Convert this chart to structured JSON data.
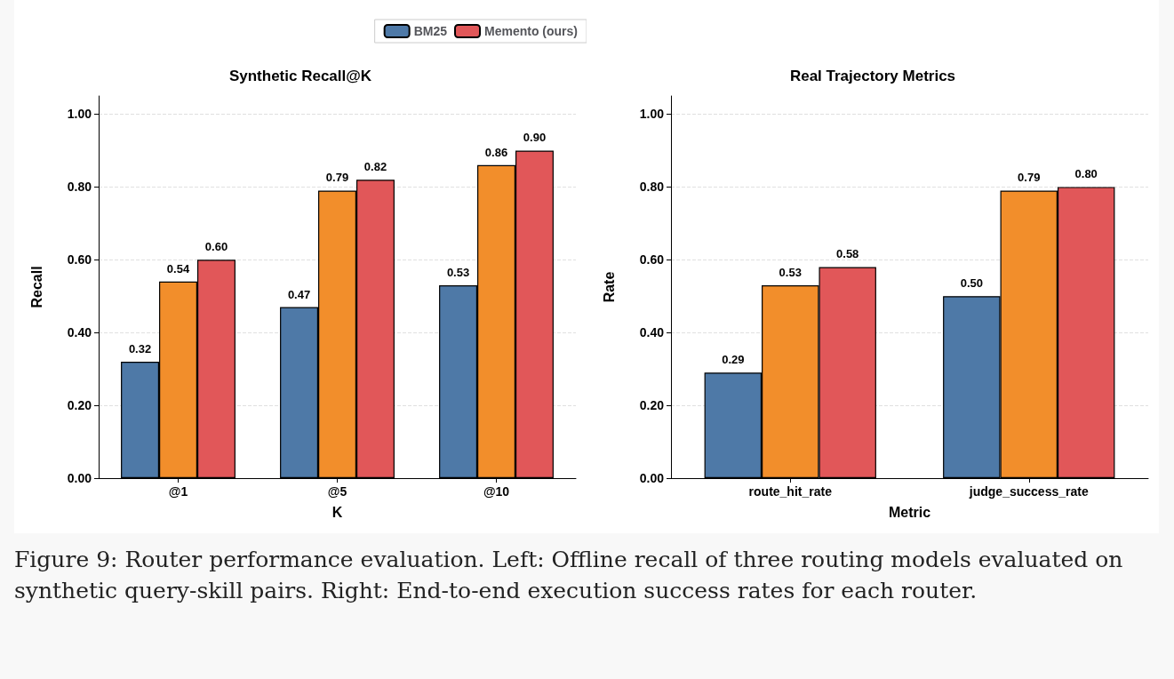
{
  "chart_data": [
    {
      "type": "bar",
      "title": "Synthetic Recall@K",
      "xlabel": "K",
      "ylabel": "Recall",
      "categories": [
        "@1",
        "@5",
        "@10"
      ],
      "series": [
        {
          "name": "BM25",
          "color": "#4e79a7",
          "values": [
            0.32,
            0.47,
            0.53
          ],
          "value_labels": [
            "0.32",
            "0.47",
            "0.53"
          ]
        },
        {
          "color": "#f28e2b",
          "values": [
            0.54,
            0.79,
            0.86
          ],
          "value_labels": [
            "0.54",
            "0.79",
            "0.86"
          ]
        },
        {
          "name": "Memento (ours)",
          "color": "#e15759",
          "values": [
            0.6,
            0.82,
            0.9
          ],
          "value_labels": [
            "0.60",
            "0.82",
            "0.90"
          ]
        }
      ],
      "ylim": [
        0,
        1.05
      ],
      "yticks": [
        {
          "value": 0,
          "label": "0.00"
        },
        {
          "value": 0.2,
          "label": "0.20"
        },
        {
          "value": 0.4,
          "label": "0.40"
        },
        {
          "value": 0.6,
          "label": "0.60"
        },
        {
          "value": 0.8,
          "label": "0.80"
        },
        {
          "value": 1,
          "label": "1.00"
        }
      ],
      "grid": "y",
      "legend": "top",
      "annotations": [
        "Figure 9: Router performance evaluation. Left: Offline recall of three routing models evaluated on synthetic query-skill pairs. Right: End-to-end execution success rates for each router."
      ]
    },
    {
      "type": "bar",
      "title": "Real Trajectory Metrics",
      "xlabel": "Metric",
      "ylabel": "Rate",
      "categories": [
        "route_hit_rate",
        "judge_success_rate"
      ],
      "series": [
        {
          "color": "#4e79a7",
          "values": [
            0.29,
            0.5
          ],
          "value_labels": [
            "0.29",
            "0.50"
          ]
        },
        {
          "color": "#f28e2b",
          "values": [
            0.53,
            0.79
          ],
          "value_labels": [
            "0.53",
            "0.79"
          ]
        },
        {
          "color": "#e15759",
          "values": [
            0.58,
            0.8
          ],
          "value_labels": [
            "0.58",
            "0.80"
          ]
        }
      ],
      "ylim": [
        0,
        1.05
      ],
      "yticks": [
        {
          "value": 0,
          "label": "0.00"
        },
        {
          "value": 0.2,
          "label": "0.20"
        },
        {
          "value": 0.4,
          "label": "0.40"
        },
        {
          "value": 0.6,
          "label": "0.60"
        },
        {
          "value": 0.8,
          "label": "0.80"
        },
        {
          "value": 1,
          "label": "1.00"
        }
      ],
      "grid": "y"
    }
  ]
}
